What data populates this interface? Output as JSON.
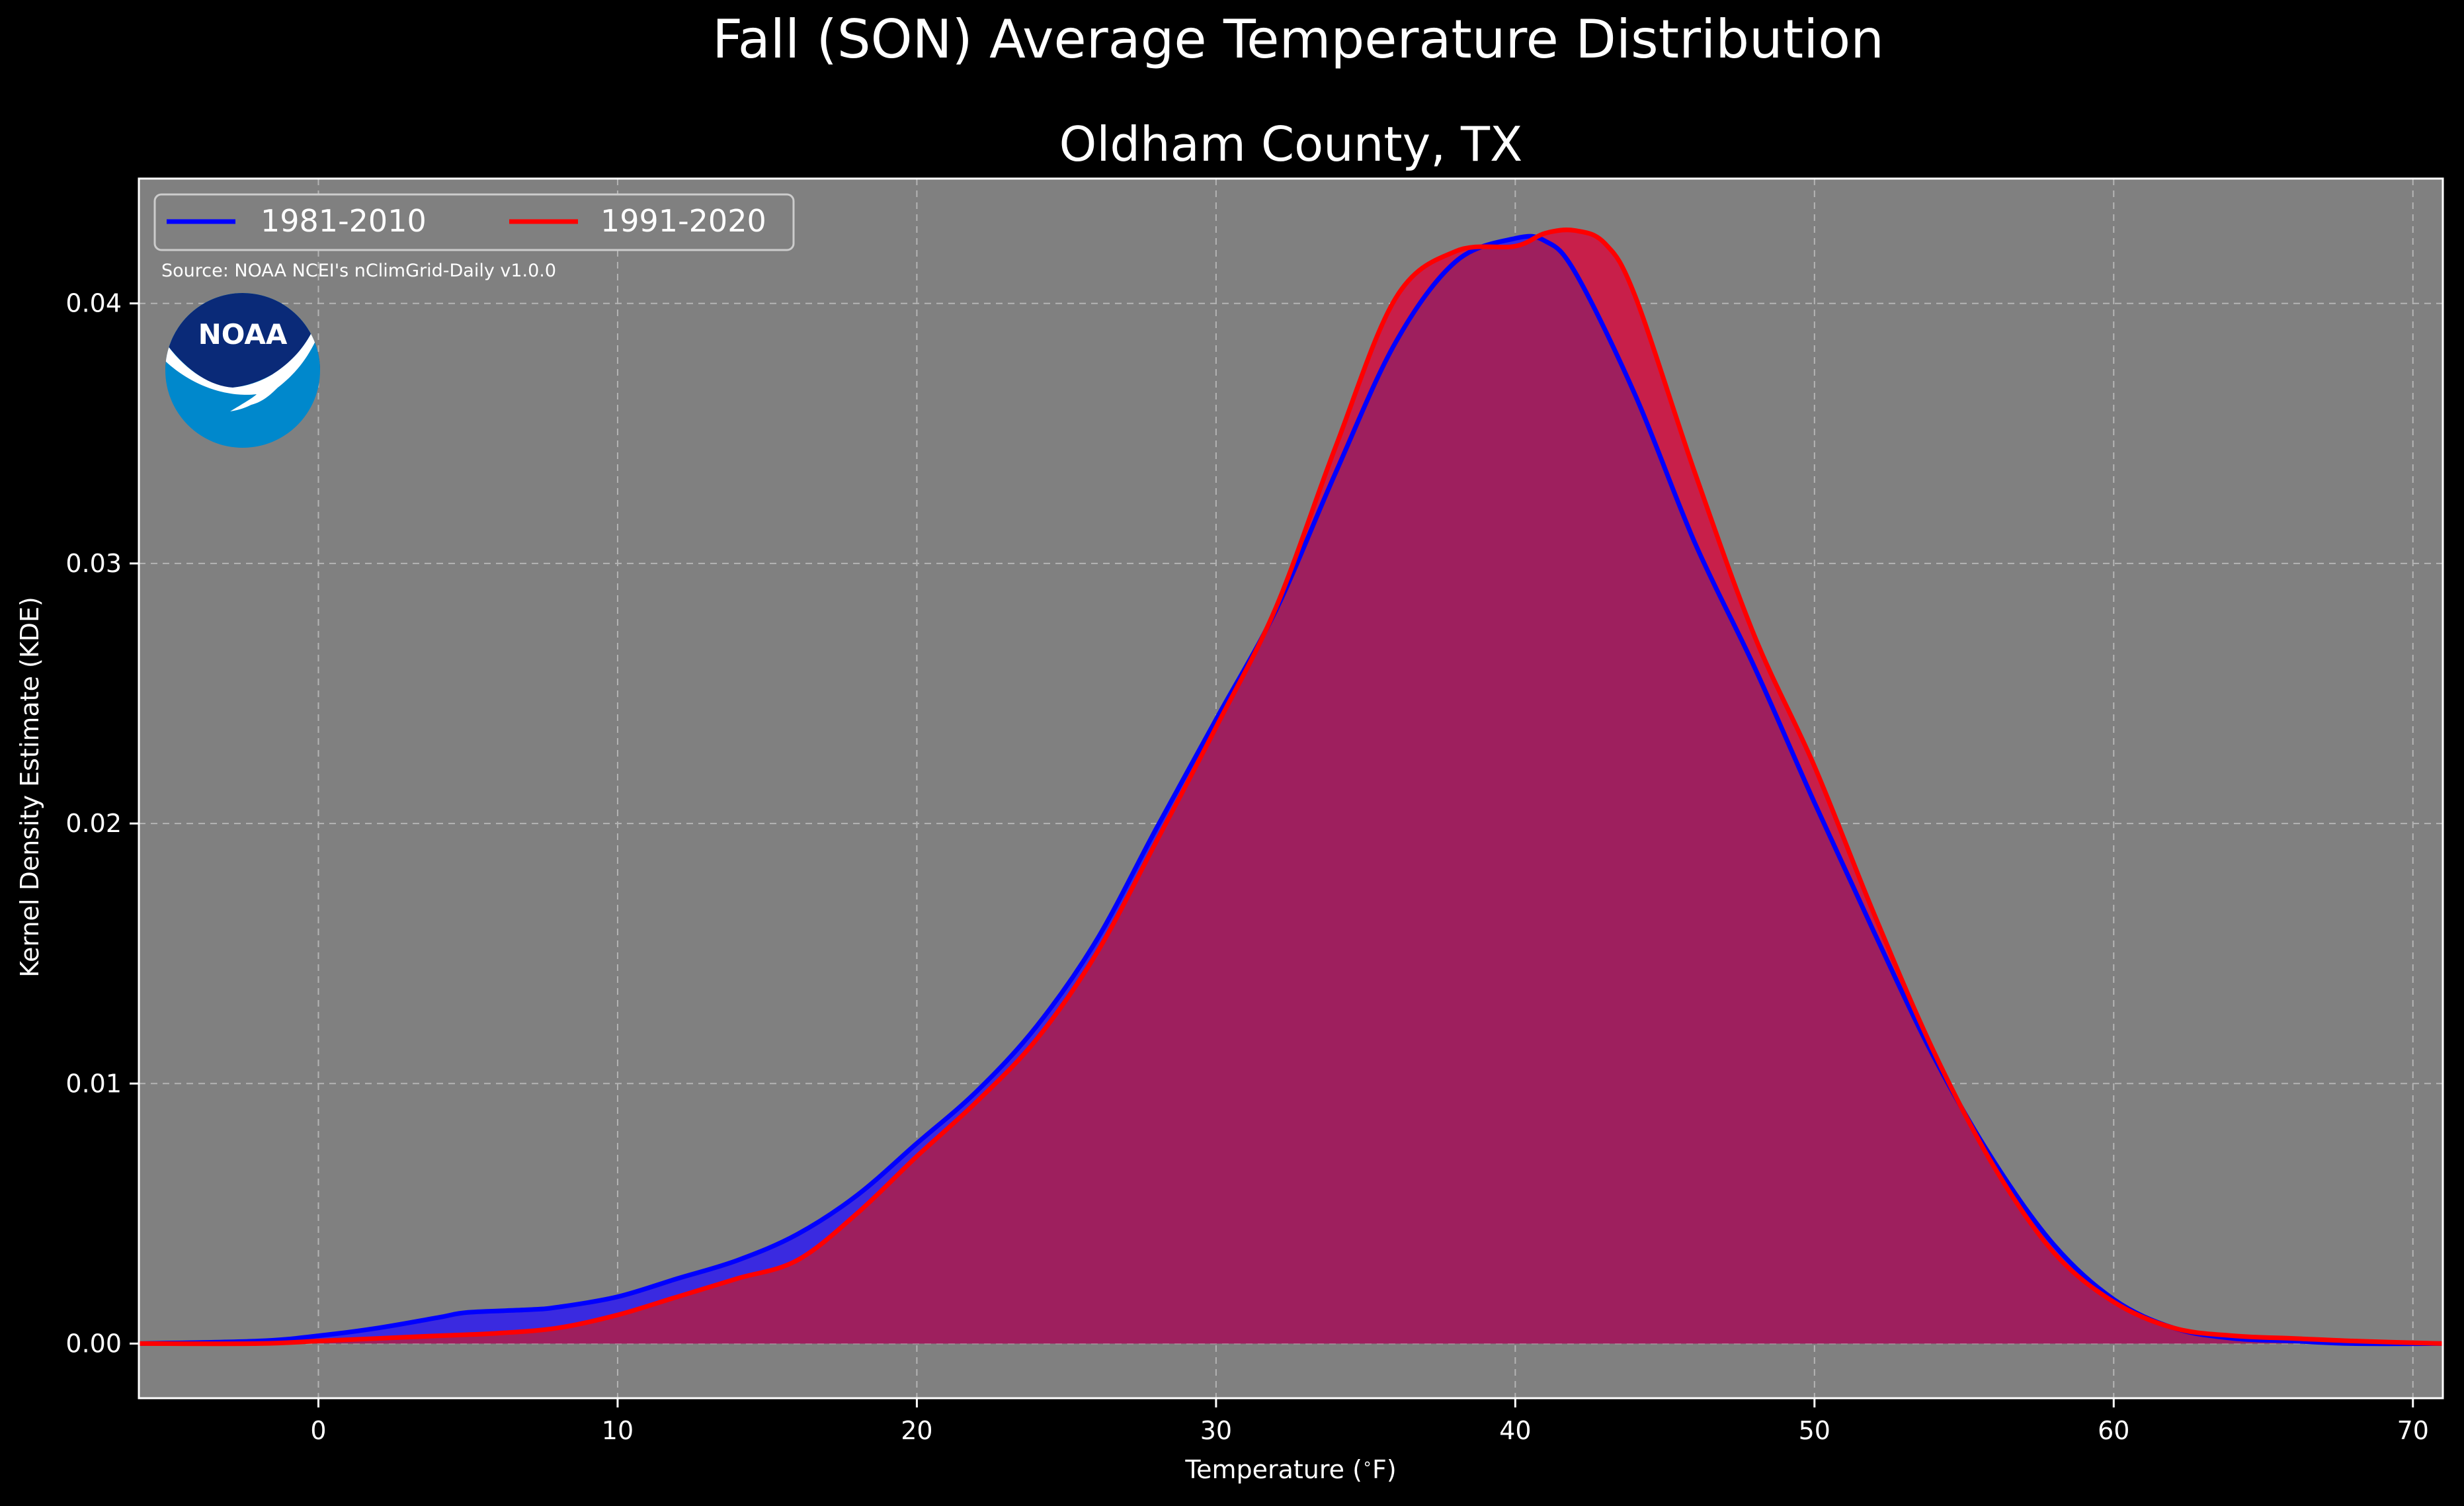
{
  "figure": {
    "title": "Fall (SON) Average Temperature Distribution",
    "source": "Source: NOAA NCEI's nClimGrid-Daily v1.0.0",
    "logo_text": "NOAA"
  },
  "colors": {
    "background": "#000000",
    "plot_background": "#808080",
    "series_1981": "#0000ff",
    "series_1991": "#ff0000",
    "fill_1981": "#3a2ae0",
    "fill_1991": "#c81f4a",
    "overlap": "#9e1f5e",
    "logo_blue_light": "#0088cc",
    "logo_blue_dark": "#0a2a78"
  },
  "chart_data": {
    "type": "area",
    "title": "Oldham County, TX",
    "xlabel": "Temperature ($^\\circ$F)",
    "ylabel": "Kernel Density Estimate (KDE)",
    "xlim": [
      -6,
      71
    ],
    "ylim": [
      -0.0021,
      0.0448
    ],
    "x_ticks": [
      0,
      10,
      20,
      30,
      40,
      50,
      60,
      70
    ],
    "x_tick_labels": [
      "0",
      "10",
      "20",
      "30",
      "40",
      "50",
      "60",
      "70"
    ],
    "y_ticks": [
      0.0,
      0.01,
      0.02,
      0.03,
      0.04
    ],
    "y_tick_labels": [
      "0.00",
      "0.01",
      "0.02",
      "0.03",
      "0.04"
    ],
    "grid": true,
    "legend_position": "top-left",
    "series": [
      {
        "name": "1981-2010",
        "points": [
          [
            -6,
            0.0
          ],
          [
            -2,
            0.0001
          ],
          [
            0,
            0.0003
          ],
          [
            2,
            0.0006
          ],
          [
            4,
            0.001
          ],
          [
            5,
            0.0012
          ],
          [
            7,
            0.0013
          ],
          [
            8,
            0.0014
          ],
          [
            10,
            0.0018
          ],
          [
            12,
            0.0025
          ],
          [
            14,
            0.0032
          ],
          [
            16,
            0.0042
          ],
          [
            18,
            0.0057
          ],
          [
            20,
            0.0077
          ],
          [
            22,
            0.0097
          ],
          [
            24,
            0.0122
          ],
          [
            26,
            0.0155
          ],
          [
            28,
            0.0198
          ],
          [
            30,
            0.024
          ],
          [
            32,
            0.0282
          ],
          [
            34,
            0.0335
          ],
          [
            36,
            0.0385
          ],
          [
            38,
            0.0416
          ],
          [
            40,
            0.0425
          ],
          [
            41,
            0.0424
          ],
          [
            42,
            0.0412
          ],
          [
            44,
            0.0365
          ],
          [
            46,
            0.0308
          ],
          [
            48,
            0.026
          ],
          [
            50,
            0.0208
          ],
          [
            52,
            0.0158
          ],
          [
            54,
            0.011
          ],
          [
            56,
            0.007
          ],
          [
            58,
            0.0038
          ],
          [
            60,
            0.0017
          ],
          [
            62,
            0.0006
          ],
          [
            64,
            0.0002
          ],
          [
            66,
            0.0001
          ],
          [
            68,
            0.0
          ],
          [
            71,
            0.0
          ]
        ]
      },
      {
        "name": "1991-2020",
        "points": [
          [
            -6,
            0.0
          ],
          [
            -2,
            0.0
          ],
          [
            0,
            0.0001
          ],
          [
            2,
            0.0002
          ],
          [
            4,
            0.0003
          ],
          [
            6,
            0.0004
          ],
          [
            8,
            0.0006
          ],
          [
            10,
            0.0011
          ],
          [
            12,
            0.0018
          ],
          [
            14,
            0.0025
          ],
          [
            16,
            0.0032
          ],
          [
            18,
            0.005
          ],
          [
            20,
            0.0072
          ],
          [
            22,
            0.0093
          ],
          [
            24,
            0.0117
          ],
          [
            26,
            0.015
          ],
          [
            28,
            0.0193
          ],
          [
            30,
            0.0237
          ],
          [
            32,
            0.0283
          ],
          [
            34,
            0.0345
          ],
          [
            36,
            0.0402
          ],
          [
            38,
            0.042
          ],
          [
            40,
            0.0422
          ],
          [
            41,
            0.0427
          ],
          [
            42,
            0.0428
          ],
          [
            43,
            0.0423
          ],
          [
            44,
            0.0403
          ],
          [
            46,
            0.0335
          ],
          [
            48,
            0.0272
          ],
          [
            50,
            0.0222
          ],
          [
            52,
            0.0165
          ],
          [
            54,
            0.0112
          ],
          [
            56,
            0.0068
          ],
          [
            58,
            0.0035
          ],
          [
            60,
            0.0016
          ],
          [
            62,
            0.0006
          ],
          [
            64,
            0.0003
          ],
          [
            66,
            0.0002
          ],
          [
            68,
            0.0001
          ],
          [
            71,
            0.0
          ]
        ]
      }
    ]
  }
}
